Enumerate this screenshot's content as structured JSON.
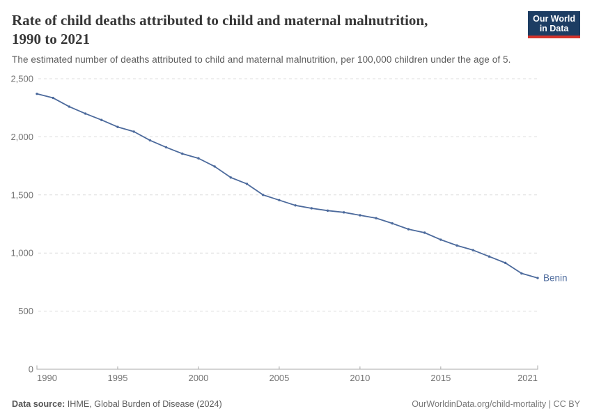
{
  "header": {
    "title_line1": "Rate of child deaths attributed to child and maternal malnutrition,",
    "title_line2": "1990 to 2021",
    "subtitle": "The estimated number of deaths attributed to child and maternal malnutrition, per 100,000 children under the age of 5.",
    "logo": {
      "line1": "Our World",
      "line2": "in Data"
    }
  },
  "colors": {
    "logo_navy": "#1d3d63",
    "logo_red": "#d5342c",
    "series_blue": "#4c6a9c",
    "gridline": "#dcdcdc",
    "axis": "#a8a8a8",
    "tick_label": "#737373"
  },
  "chart_data": {
    "type": "line",
    "title": "Rate of child deaths attributed to child and maternal malnutrition, 1990 to 2021",
    "xlabel": "",
    "ylabel": "",
    "x": [
      1990,
      1991,
      1992,
      1993,
      1994,
      1995,
      1996,
      1997,
      1998,
      1999,
      2000,
      2001,
      2002,
      2003,
      2004,
      2005,
      2006,
      2007,
      2008,
      2009,
      2010,
      2011,
      2012,
      2013,
      2014,
      2015,
      2016,
      2017,
      2018,
      2019,
      2020,
      2021
    ],
    "series": [
      {
        "name": "Benin",
        "color": "#4c6a9c",
        "values": [
          2370,
          2335,
          2260,
          2200,
          2145,
          2085,
          2045,
          1970,
          1910,
          1855,
          1815,
          1745,
          1650,
          1595,
          1500,
          1455,
          1410,
          1385,
          1365,
          1350,
          1325,
          1300,
          1255,
          1205,
          1175,
          1115,
          1065,
          1025,
          970,
          915,
          825,
          785
        ]
      }
    ],
    "xticks": [
      1990,
      1995,
      2000,
      2005,
      2010,
      2015,
      2021
    ],
    "yticks": [
      0,
      500,
      1000,
      1500,
      2000,
      2500
    ],
    "ylim": [
      0,
      2500
    ],
    "grid": "horizontal-dashed",
    "legend_position": "end-of-line",
    "end_label": "Benin"
  },
  "footer": {
    "source_label": "Data source:",
    "source_text": "IHME, Global Burden of Disease (2024)",
    "credit": "OurWorldinData.org/child-mortality | CC BY"
  }
}
